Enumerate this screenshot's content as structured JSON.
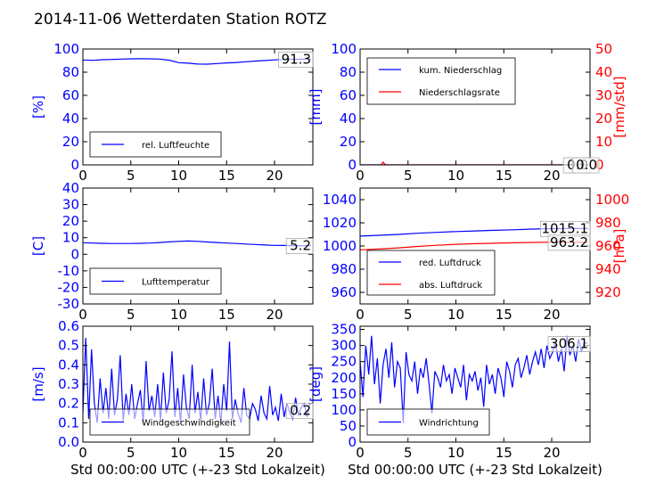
{
  "title": "2014-11-06 Wetterdaten Station ROTZ",
  "xlabel": "Std 00:00:00 UTC (+-23 Std Lokalzeit)",
  "colors": {
    "blue": "#0000ff",
    "red": "#ff0000",
    "lightblue": "#8a8aff"
  },
  "chart_data": [
    {
      "type": "line",
      "xlim": [
        0,
        24
      ],
      "ylim": [
        0,
        100
      ],
      "x_ticks": [
        0,
        5,
        10,
        15,
        20
      ],
      "y_ticks": [
        0,
        20,
        40,
        60,
        80,
        100
      ],
      "ylabel": "[%]",
      "legend": [
        "rel. Luftfeuchte"
      ],
      "legend_position": "lower-left",
      "annotations": [
        "91.3"
      ],
      "series": [
        {
          "name": "rel. Luftfeuchte",
          "color": "#0000ff",
          "x": [
            0,
            1,
            2,
            3,
            4,
            5,
            6,
            7,
            8,
            9,
            10,
            11,
            12,
            13,
            14,
            15,
            16,
            17,
            18,
            19,
            20,
            21,
            22,
            23,
            23.8
          ],
          "y": [
            90.5,
            90.2,
            90.8,
            91.0,
            91.3,
            91.5,
            91.6,
            91.5,
            91.3,
            90.4,
            88.2,
            87.8,
            87.0,
            86.9,
            87.5,
            88.0,
            88.4,
            89.0,
            89.6,
            90.1,
            90.6,
            90.9,
            91.1,
            91.2,
            91.3
          ]
        }
      ]
    },
    {
      "type": "line",
      "xlim": [
        0,
        24
      ],
      "ylim": [
        0,
        100
      ],
      "x_ticks": [
        0,
        5,
        10,
        15,
        20
      ],
      "y_ticks": [
        0,
        20,
        40,
        60,
        80,
        100
      ],
      "ylabel": "[mm]",
      "y2lim": [
        0,
        50
      ],
      "y2_ticks": [
        0,
        10,
        20,
        30,
        40,
        50
      ],
      "y2label": "[mm/std]",
      "legend": [
        "kum. Niederschlag",
        "Niederschlagsrate"
      ],
      "legend_position": "upper-left",
      "annotations": [
        "0.0",
        "0.0"
      ],
      "series": [
        {
          "name": "kum. Niederschlag",
          "color": "#0000ff",
          "axis": "left",
          "x": [
            0,
            2.2,
            2.5,
            24
          ],
          "y": [
            0,
            0,
            0,
            0
          ]
        },
        {
          "name": "Niederschlagsrate",
          "color": "#ff0000",
          "axis": "right",
          "x": [
            0,
            2.2,
            2.4,
            2.5,
            2.7,
            24
          ],
          "y": [
            0,
            0,
            1.2,
            0.6,
            0,
            0
          ]
        }
      ]
    },
    {
      "type": "line",
      "xlim": [
        0,
        24
      ],
      "ylim": [
        -30,
        40
      ],
      "x_ticks": [
        0,
        5,
        10,
        15,
        20
      ],
      "y_ticks": [
        -30,
        -20,
        -10,
        0,
        10,
        20,
        30,
        40
      ],
      "ylabel": "[C]",
      "legend": [
        "Lufttemperatur"
      ],
      "legend_position": "lower-left",
      "annotations": [
        "5.2"
      ],
      "series": [
        {
          "name": "Lufttemperatur",
          "color": "#0000ff",
          "x": [
            0,
            1,
            2,
            3,
            4,
            5,
            6,
            7,
            8,
            9,
            10,
            11,
            12,
            13,
            14,
            15,
            16,
            17,
            18,
            19,
            20,
            21,
            22,
            23,
            23.8
          ],
          "y": [
            7.0,
            6.8,
            6.6,
            6.5,
            6.5,
            6.5,
            6.6,
            6.8,
            7.1,
            7.5,
            7.8,
            8.0,
            7.8,
            7.4,
            7.1,
            6.8,
            6.5,
            6.2,
            5.9,
            5.6,
            5.4,
            5.3,
            5.2,
            5.2,
            5.2
          ]
        }
      ]
    },
    {
      "type": "line",
      "xlim": [
        0,
        24
      ],
      "ylim": [
        950,
        1050
      ],
      "x_ticks": [
        0,
        5,
        10,
        15,
        20
      ],
      "y_ticks": [
        960,
        980,
        1000,
        1020,
        1040
      ],
      "ylabel": "",
      "y2lim": [
        910,
        1010
      ],
      "y2_ticks": [
        920,
        940,
        960,
        980,
        1000
      ],
      "y2label": "[hPa]",
      "legend": [
        "red. Luftdruck",
        "abs. Luftdruck"
      ],
      "legend_position": "lower-left",
      "annotations": [
        "1015.1",
        "963.2"
      ],
      "series": [
        {
          "name": "red. Luftdruck",
          "color": "#0000ff",
          "axis": "left",
          "x": [
            0,
            2,
            4,
            6,
            8,
            10,
            12,
            14,
            16,
            18,
            20,
            22,
            23.8
          ],
          "y": [
            1008.5,
            1009.2,
            1010.0,
            1011.0,
            1011.8,
            1012.5,
            1013.0,
            1013.5,
            1014.0,
            1014.6,
            1015.0,
            1015.1,
            1015.1
          ]
        },
        {
          "name": "abs. Luftdruck",
          "color": "#ff0000",
          "axis": "right",
          "x": [
            0,
            2,
            4,
            6,
            8,
            10,
            12,
            14,
            16,
            18,
            20,
            22,
            23.8
          ],
          "y": [
            956.7,
            957.4,
            958.4,
            959.6,
            960.6,
            961.5,
            962.0,
            962.4,
            962.8,
            963.1,
            963.3,
            963.2,
            963.2
          ]
        }
      ]
    },
    {
      "type": "line",
      "xlim": [
        0,
        24
      ],
      "ylim": [
        0,
        0.6
      ],
      "x_ticks": [
        0,
        5,
        10,
        15,
        20
      ],
      "y_ticks": [
        0.0,
        0.1,
        0.2,
        0.3,
        0.4,
        0.5,
        0.6
      ],
      "ylabel": "[m/s]",
      "legend": [
        "Windgeschwindigkeit"
      ],
      "legend_position": "lower-left",
      "annotations": [
        "0.2"
      ],
      "series": [
        {
          "name": "Windgeschwindigkeit",
          "color": "#0000ff",
          "x": [
            0,
            0.3,
            0.6,
            0.9,
            1.2,
            1.5,
            1.8,
            2.1,
            2.4,
            2.7,
            3.0,
            3.3,
            3.6,
            3.9,
            4.2,
            4.5,
            4.8,
            5.1,
            5.4,
            5.7,
            6.0,
            6.3,
            6.6,
            6.9,
            7.2,
            7.5,
            7.8,
            8.1,
            8.4,
            8.7,
            9.0,
            9.3,
            9.6,
            9.9,
            10.2,
            10.5,
            10.8,
            11.1,
            11.4,
            11.7,
            12.0,
            12.3,
            12.6,
            12.9,
            13.2,
            13.5,
            13.8,
            14.1,
            14.4,
            14.7,
            15.0,
            15.3,
            15.6,
            15.9,
            16.2,
            16.5,
            16.8,
            17.1,
            17.4,
            17.7,
            18.0,
            18.3,
            18.6,
            18.9,
            19.2,
            19.5,
            19.8,
            20.1,
            20.4,
            20.7,
            21.0,
            21.3,
            21.6,
            21.9,
            22.2,
            22.5,
            22.8,
            23.1,
            23.4,
            23.7
          ],
          "y": [
            0.15,
            0.54,
            0.12,
            0.48,
            0.2,
            0.1,
            0.33,
            0.15,
            0.28,
            0.12,
            0.38,
            0.14,
            0.22,
            0.45,
            0.11,
            0.25,
            0.14,
            0.3,
            0.12,
            0.2,
            0.27,
            0.1,
            0.42,
            0.16,
            0.24,
            0.13,
            0.3,
            0.11,
            0.36,
            0.15,
            0.22,
            0.47,
            0.13,
            0.28,
            0.1,
            0.35,
            0.18,
            0.12,
            0.4,
            0.15,
            0.26,
            0.11,
            0.33,
            0.14,
            0.2,
            0.38,
            0.12,
            0.24,
            0.1,
            0.3,
            0.16,
            0.52,
            0.12,
            0.22,
            0.15,
            0.1,
            0.28,
            0.14,
            0.12,
            0.2,
            0.17,
            0.11,
            0.24,
            0.15,
            0.12,
            0.29,
            0.14,
            0.18,
            0.11,
            0.25,
            0.13,
            0.2,
            0.15,
            0.12,
            0.23,
            0.14,
            0.18,
            0.2,
            0.13,
            0.2
          ]
        }
      ]
    },
    {
      "type": "line",
      "xlim": [
        0,
        24
      ],
      "ylim": [
        0,
        360
      ],
      "x_ticks": [
        0,
        5,
        10,
        15,
        20
      ],
      "y_ticks": [
        0,
        50,
        100,
        150,
        200,
        250,
        300,
        350
      ],
      "ylabel": "[deg]",
      "legend": [
        "Windrichtung"
      ],
      "legend_position": "lower-left",
      "annotations": [
        "306.1"
      ],
      "series": [
        {
          "name": "Windrichtung",
          "color": "#0000ff",
          "x": [
            0,
            0.3,
            0.6,
            0.9,
            1.2,
            1.5,
            1.8,
            2.1,
            2.4,
            2.7,
            3.0,
            3.3,
            3.6,
            3.9,
            4.2,
            4.5,
            4.8,
            5.1,
            5.4,
            5.7,
            6.0,
            6.3,
            6.6,
            6.9,
            7.2,
            7.5,
            7.8,
            8.1,
            8.4,
            8.7,
            9.0,
            9.3,
            9.6,
            9.9,
            10.2,
            10.5,
            10.8,
            11.1,
            11.4,
            11.7,
            12.0,
            12.3,
            12.6,
            12.9,
            13.2,
            13.5,
            13.8,
            14.1,
            14.4,
            14.7,
            15.0,
            15.3,
            15.6,
            15.9,
            16.2,
            16.5,
            16.8,
            17.1,
            17.4,
            17.7,
            18.0,
            18.3,
            18.6,
            18.9,
            19.2,
            19.5,
            19.8,
            20.1,
            20.4,
            20.7,
            21.0,
            21.3,
            21.6,
            21.9,
            22.2,
            22.5,
            22.8,
            23.1,
            23.4,
            23.7
          ],
          "y": [
            250,
            140,
            300,
            210,
            330,
            180,
            260,
            120,
            240,
            290,
            200,
            310,
            170,
            250,
            230,
            60,
            280,
            210,
            190,
            250,
            150,
            230,
            200,
            260,
            180,
            90,
            220,
            200,
            170,
            240,
            190,
            210,
            150,
            230,
            200,
            170,
            240,
            130,
            210,
            190,
            220,
            160,
            200,
            110,
            240,
            180,
            210,
            150,
            230,
            200,
            140,
            250,
            220,
            170,
            240,
            260,
            200,
            230,
            270,
            210,
            250,
            280,
            240,
            290,
            230,
            300,
            260,
            280,
            310,
            250,
            290,
            220,
            330,
            270,
            300,
            250,
            320,
            280,
            310,
            306
          ]
        }
      ]
    }
  ]
}
